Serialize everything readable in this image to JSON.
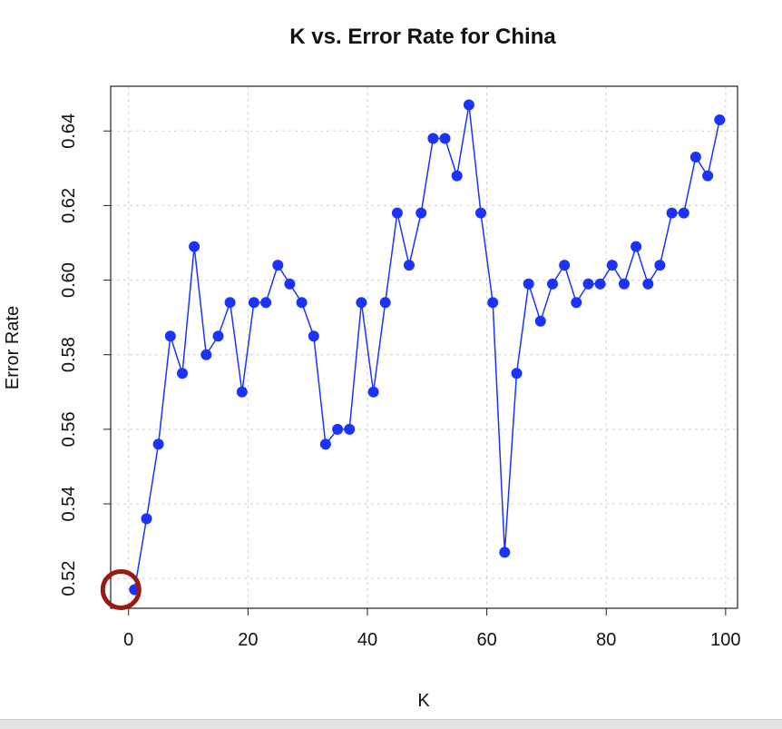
{
  "chart_data": {
    "type": "line",
    "title": "K vs. Error Rate for China",
    "xlabel": "K",
    "ylabel": "Error Rate",
    "xlim": [
      -3,
      102
    ],
    "ylim": [
      0.512,
      0.652
    ],
    "x_ticks": [
      0,
      20,
      40,
      60,
      80,
      100
    ],
    "x_tick_labels": [
      "0",
      "20",
      "40",
      "60",
      "80",
      "100"
    ],
    "y_ticks": [
      0.52,
      0.54,
      0.56,
      0.58,
      0.6,
      0.62,
      0.64
    ],
    "y_tick_labels": [
      "0.52",
      "0.54",
      "0.56",
      "0.58",
      "0.60",
      "0.62",
      "0.64"
    ],
    "grid": true,
    "series": [
      {
        "color": "#1a33ff",
        "markers": "filled-circle",
        "x": [
          1,
          3,
          5,
          7,
          9,
          11,
          13,
          15,
          17,
          19,
          21,
          23,
          25,
          27,
          29,
          31,
          33,
          35,
          37,
          39,
          41,
          43,
          45,
          47,
          49,
          51,
          53,
          55,
          57,
          59,
          61,
          63,
          65,
          67,
          69,
          71,
          73,
          75,
          77,
          79,
          81,
          83,
          85,
          87,
          89,
          91,
          93,
          95,
          97,
          99
        ],
        "y": [
          0.517,
          0.536,
          0.556,
          0.585,
          0.575,
          0.609,
          0.58,
          0.585,
          0.594,
          0.57,
          0.594,
          0.594,
          0.604,
          0.599,
          0.594,
          0.585,
          0.556,
          0.56,
          0.56,
          0.594,
          0.57,
          0.594,
          0.618,
          0.604,
          0.618,
          0.638,
          0.638,
          0.628,
          0.647,
          0.618,
          0.594,
          0.527,
          0.575,
          0.599,
          0.589,
          0.599,
          0.604,
          0.594,
          0.599,
          0.599,
          0.604,
          0.599,
          0.609,
          0.599,
          0.604,
          0.618,
          0.618,
          0.633,
          0.628,
          0.643
        ]
      }
    ],
    "annotation": {
      "shape": "circle",
      "color": "#9b1b12",
      "target_point_index": 0
    }
  }
}
